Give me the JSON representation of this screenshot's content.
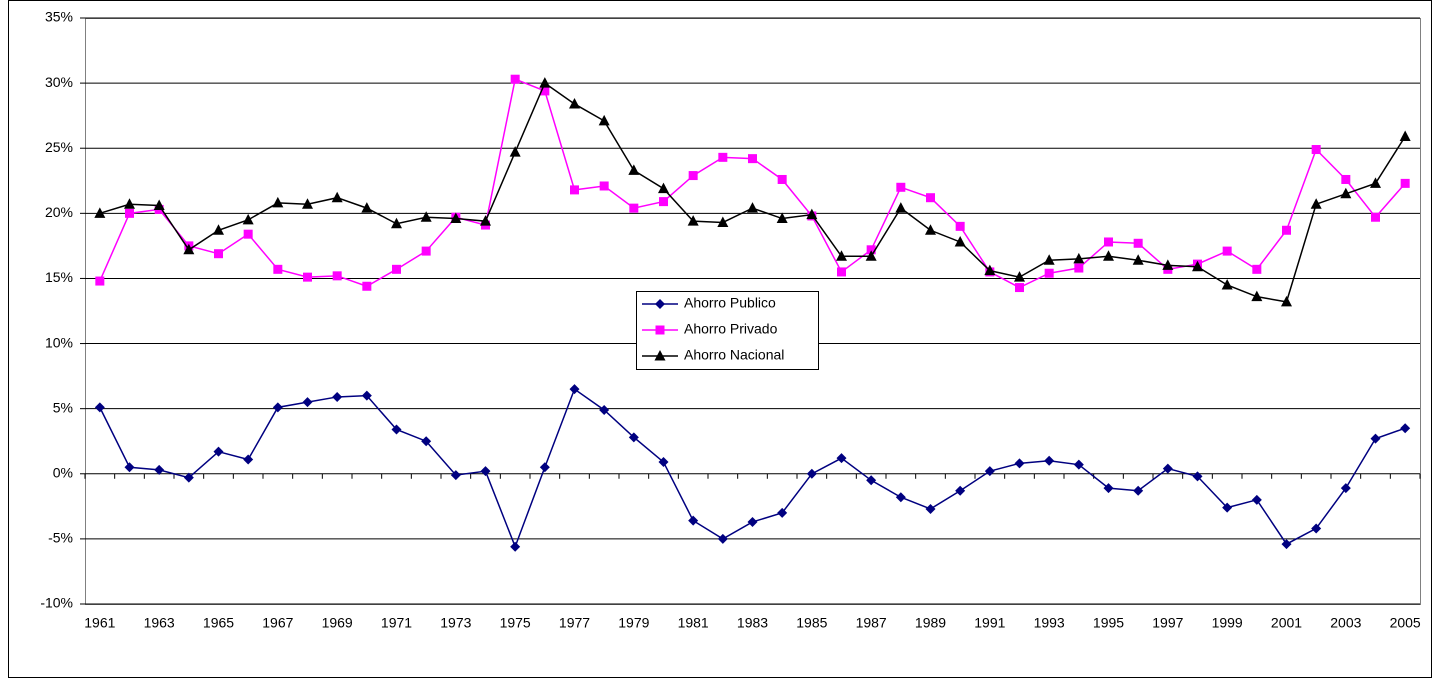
{
  "chart_data": {
    "type": "line",
    "categories": [
      "1961",
      null,
      "1963",
      null,
      "1965",
      null,
      "1967",
      null,
      "1969",
      null,
      "1971",
      null,
      "1973",
      null,
      "1975",
      null,
      "1977",
      null,
      "1979",
      null,
      "1981",
      null,
      "1983",
      null,
      "1985",
      null,
      "1987",
      null,
      "1989",
      null,
      "1991",
      null,
      "1993",
      null,
      "1995",
      null,
      "1997",
      null,
      "1999",
      null,
      "2001",
      null,
      "2003",
      null,
      "2005"
    ],
    "series": [
      {
        "name": "Ahorro Publico",
        "color": "#000080",
        "marker": "diamond",
        "values": [
          5.1,
          0.5,
          0.3,
          -0.3,
          1.7,
          1.1,
          5.1,
          5.5,
          5.9,
          6.0,
          3.4,
          2.5,
          -0.1,
          0.2,
          -5.6,
          0.5,
          6.5,
          4.9,
          2.8,
          0.9,
          -3.6,
          -5.0,
          -3.7,
          -3.0,
          0.0,
          1.2,
          -0.5,
          -1.8,
          -2.7,
          -1.3,
          0.2,
          0.8,
          1.0,
          0.7,
          -1.1,
          -1.3,
          0.4,
          -0.2,
          -2.6,
          -2.0,
          -5.4,
          -4.2,
          -1.1,
          2.7,
          3.5
        ]
      },
      {
        "name": "Ahorro Privado",
        "color": "#ff00ff",
        "marker": "square",
        "values": [
          14.8,
          20.0,
          20.3,
          17.5,
          16.9,
          18.4,
          15.7,
          15.1,
          15.2,
          14.4,
          15.7,
          17.1,
          19.7,
          19.1,
          30.3,
          29.4,
          21.8,
          22.1,
          20.4,
          20.9,
          22.9,
          24.3,
          24.2,
          22.6,
          19.8,
          15.5,
          17.2,
          22.0,
          21.2,
          19.0,
          15.5,
          14.3,
          15.4,
          15.8,
          17.8,
          17.7,
          15.7,
          16.1,
          17.1,
          15.7,
          18.7,
          24.9,
          22.6,
          19.7,
          22.3
        ]
      },
      {
        "name": "Ahorro Nacional",
        "color": "#000000",
        "marker": "triangle",
        "values": [
          20.0,
          20.7,
          20.6,
          17.2,
          18.7,
          19.5,
          20.8,
          20.7,
          21.2,
          20.4,
          19.2,
          19.7,
          19.6,
          19.4,
          24.7,
          30.0,
          28.4,
          27.1,
          23.3,
          21.9,
          19.4,
          19.3,
          20.4,
          19.6,
          19.9,
          16.7,
          16.7,
          20.4,
          18.7,
          17.8,
          15.6,
          15.1,
          16.4,
          16.5,
          16.7,
          16.4,
          16.0,
          15.9,
          14.5,
          13.6,
          13.2,
          20.7,
          21.5,
          22.3,
          25.9
        ]
      }
    ],
    "ylim": [
      -10,
      35
    ],
    "yticks": [
      {
        "value": -10,
        "label": "-10%"
      },
      {
        "value": -5,
        "label": "-5%"
      },
      {
        "value": 0,
        "label": "0%"
      },
      {
        "value": 5,
        "label": "5%"
      },
      {
        "value": 10,
        "label": "10%"
      },
      {
        "value": 15,
        "label": "15%"
      },
      {
        "value": 20,
        "label": "20%"
      },
      {
        "value": 25,
        "label": "25%"
      },
      {
        "value": 30,
        "label": "30%"
      },
      {
        "value": 35,
        "label": "35%"
      }
    ],
    "grid": true
  }
}
